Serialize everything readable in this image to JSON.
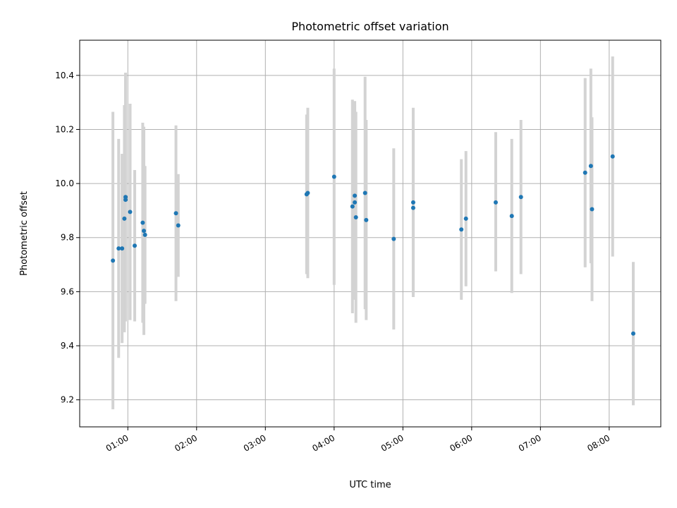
{
  "chart_data": {
    "type": "scatter",
    "title": "Photometric offset variation",
    "xlabel": "UTC time",
    "ylabel": "Photometric offset",
    "xlim": [
      "00:18",
      "08:45"
    ],
    "ylim": [
      9.1,
      10.53
    ],
    "x_ticks": [
      "01:00",
      "02:00",
      "03:00",
      "04:00",
      "05:00",
      "06:00",
      "07:00",
      "08:00"
    ],
    "y_ticks": [
      9.2,
      9.4,
      9.6,
      9.8,
      10.0,
      10.2,
      10.4
    ],
    "grid": true,
    "marker_color": "#1f77b4",
    "errorbar_color": "#d3d3d3",
    "points": [
      {
        "time": "00:47",
        "y": 9.715,
        "ylo": 9.165,
        "yhi": 10.265
      },
      {
        "time": "00:52",
        "y": 9.76,
        "ylo": 9.355,
        "yhi": 10.165
      },
      {
        "time": "00:55",
        "y": 9.76,
        "ylo": 9.41,
        "yhi": 10.11
      },
      {
        "time": "00:57",
        "y": 9.87,
        "ylo": 9.45,
        "yhi": 10.29
      },
      {
        "time": "00:58",
        "y": 9.95,
        "ylo": 9.49,
        "yhi": 10.41
      },
      {
        "time": "00:58",
        "y": 9.94,
        "ylo": 9.54,
        "yhi": 10.34
      },
      {
        "time": "01:02",
        "y": 9.895,
        "ylo": 9.495,
        "yhi": 10.295
      },
      {
        "time": "01:06",
        "y": 9.77,
        "ylo": 9.49,
        "yhi": 10.05
      },
      {
        "time": "01:13",
        "y": 9.855,
        "ylo": 9.485,
        "yhi": 10.225
      },
      {
        "time": "01:14",
        "y": 9.825,
        "ylo": 9.44,
        "yhi": 10.21
      },
      {
        "time": "01:15",
        "y": 9.81,
        "ylo": 9.555,
        "yhi": 10.065
      },
      {
        "time": "01:42",
        "y": 9.89,
        "ylo": 9.565,
        "yhi": 10.215
      },
      {
        "time": "01:44",
        "y": 9.845,
        "ylo": 9.655,
        "yhi": 10.035
      },
      {
        "time": "03:36",
        "y": 9.96,
        "ylo": 9.665,
        "yhi": 10.255
      },
      {
        "time": "03:37",
        "y": 9.965,
        "ylo": 9.65,
        "yhi": 10.28
      },
      {
        "time": "04:00",
        "y": 10.025,
        "ylo": 9.625,
        "yhi": 10.425
      },
      {
        "time": "04:16",
        "y": 9.915,
        "ylo": 9.52,
        "yhi": 10.31
      },
      {
        "time": "04:18",
        "y": 9.955,
        "ylo": 9.605,
        "yhi": 10.305
      },
      {
        "time": "04:18",
        "y": 9.93,
        "ylo": 9.57,
        "yhi": 10.29
      },
      {
        "time": "04:19",
        "y": 9.875,
        "ylo": 9.485,
        "yhi": 10.265
      },
      {
        "time": "04:27",
        "y": 9.965,
        "ylo": 9.535,
        "yhi": 10.395
      },
      {
        "time": "04:28",
        "y": 9.865,
        "ylo": 9.495,
        "yhi": 10.235
      },
      {
        "time": "04:52",
        "y": 9.795,
        "ylo": 9.46,
        "yhi": 10.13
      },
      {
        "time": "05:09",
        "y": 9.93,
        "ylo": 9.58,
        "yhi": 10.28
      },
      {
        "time": "05:09",
        "y": 9.91,
        "ylo": 9.59,
        "yhi": 10.23
      },
      {
        "time": "05:51",
        "y": 9.83,
        "ylo": 9.57,
        "yhi": 10.09
      },
      {
        "time": "05:55",
        "y": 9.87,
        "ylo": 9.62,
        "yhi": 10.12
      },
      {
        "time": "06:21",
        "y": 9.93,
        "ylo": 9.675,
        "yhi": 10.19
      },
      {
        "time": "06:35",
        "y": 9.88,
        "ylo": 9.595,
        "yhi": 10.165
      },
      {
        "time": "06:43",
        "y": 9.95,
        "ylo": 9.665,
        "yhi": 10.235
      },
      {
        "time": "07:39",
        "y": 10.04,
        "ylo": 9.69,
        "yhi": 10.39
      },
      {
        "time": "07:44",
        "y": 10.065,
        "ylo": 9.705,
        "yhi": 10.425
      },
      {
        "time": "07:45",
        "y": 9.905,
        "ylo": 9.565,
        "yhi": 10.245
      },
      {
        "time": "08:03",
        "y": 10.1,
        "ylo": 9.73,
        "yhi": 10.47
      },
      {
        "time": "08:21",
        "y": 9.445,
        "ylo": 9.18,
        "yhi": 9.71
      }
    ]
  }
}
